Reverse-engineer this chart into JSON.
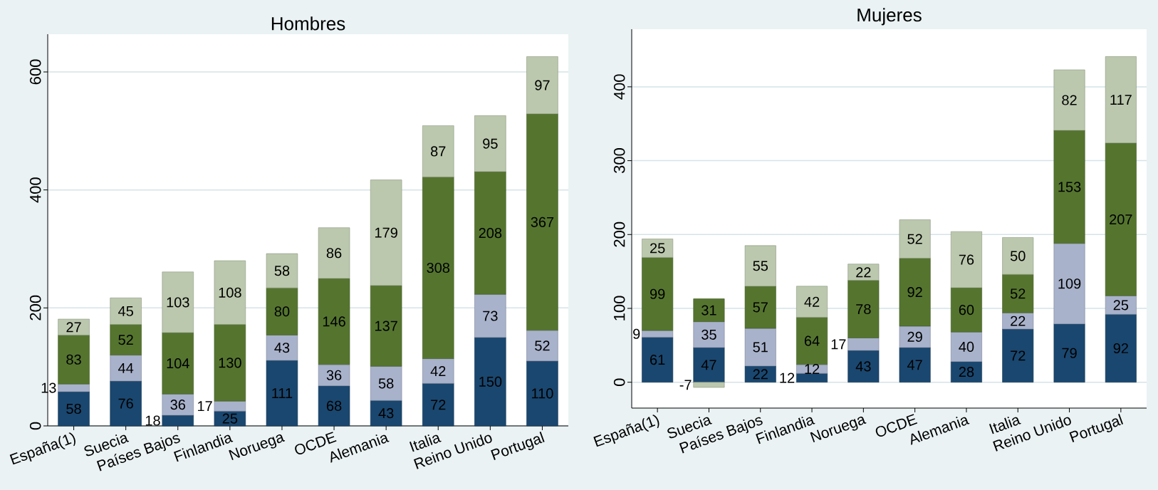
{
  "chart_data": [
    {
      "type": "bar",
      "title": "Hombres",
      "stacked": true,
      "data_labels": true,
      "grid": "y",
      "categories": [
        "España(1)",
        "Suecia",
        "Países Bajos",
        "Finlandia",
        "Noruega",
        "OCDE",
        "Alemania",
        "Italia",
        "Reino Unido",
        "Portugal"
      ],
      "series": [
        {
          "color": "#1a476f",
          "values": [
            58,
            76,
            18,
            25,
            111,
            68,
            43,
            72,
            150,
            110
          ]
        },
        {
          "color": "#a8b2cb",
          "values": [
            13,
            44,
            36,
            17,
            43,
            36,
            58,
            42,
            73,
            52
          ]
        },
        {
          "color": "#55752f",
          "values": [
            83,
            52,
            104,
            130,
            80,
            146,
            137,
            308,
            208,
            367
          ]
        },
        {
          "color": "#bbc8ad",
          "values": [
            27,
            45,
            103,
            108,
            58,
            86,
            179,
            87,
            95,
            97
          ]
        }
      ],
      "ylim": [
        0,
        664
      ],
      "yticks": [
        0,
        200,
        400,
        600
      ]
    },
    {
      "type": "bar",
      "title": "Mujeres",
      "stacked": true,
      "data_labels": true,
      "grid": "y",
      "categories": [
        "España(1)",
        "Suecia",
        "Países Bajos",
        "Finlandia",
        "Noruega",
        "OCDE",
        "Alemania",
        "Italia",
        "Reino Unido",
        "Portugal"
      ],
      "series": [
        {
          "color": "#1a476f",
          "values": [
            61,
            47,
            22,
            12,
            43,
            47,
            28,
            72,
            79,
            92
          ]
        },
        {
          "color": "#a8b2cb",
          "values": [
            9,
            35,
            51,
            12,
            17,
            29,
            40,
            22,
            109,
            25
          ]
        },
        {
          "color": "#55752f",
          "values": [
            99,
            31,
            57,
            64,
            78,
            92,
            60,
            52,
            153,
            207
          ]
        },
        {
          "color": "#bbc8ad",
          "values": [
            25,
            -7,
            55,
            42,
            22,
            52,
            76,
            50,
            82,
            117
          ]
        }
      ],
      "ylim": [
        -35,
        478
      ],
      "yticks": [
        0,
        100,
        200,
        300,
        400
      ]
    }
  ]
}
